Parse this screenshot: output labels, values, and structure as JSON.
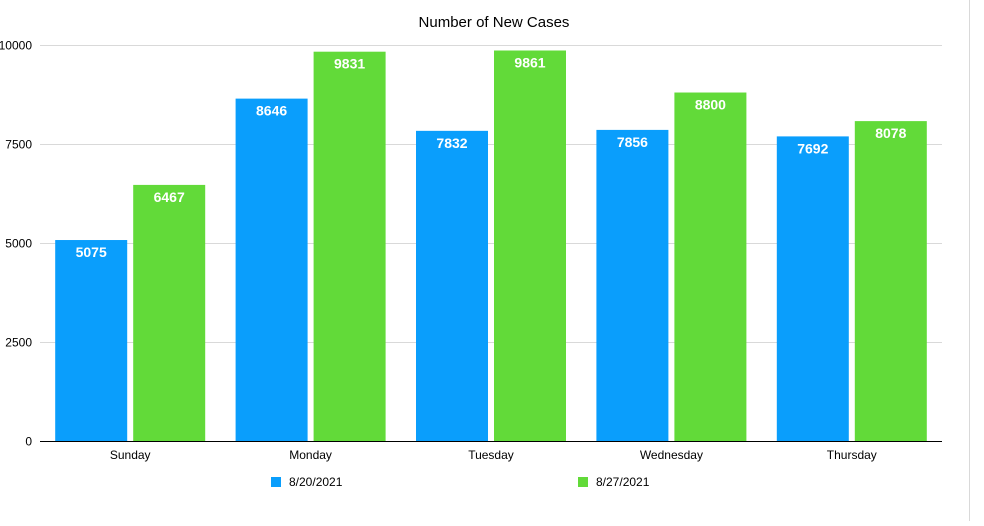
{
  "chart_data": {
    "type": "bar",
    "title": "Number of New Cases",
    "xlabel": "",
    "ylabel": "",
    "categories": [
      "Sunday",
      "Monday",
      "Tuesday",
      "Wednesday",
      "Thursday"
    ],
    "ylim": [
      0,
      10000
    ],
    "yticks": [
      0,
      2500,
      5000,
      7500,
      10000
    ],
    "ytick_labels": [
      "0",
      "2500",
      "5000",
      "7500",
      "10000"
    ],
    "grid": true,
    "legend_position": "bottom",
    "data_labels": true,
    "series": [
      {
        "name": "8/20/2021",
        "color": "#0a9efc",
        "values": [
          5075,
          8646,
          7832,
          7856,
          7692
        ]
      },
      {
        "name": "8/27/2021",
        "color": "#62da39",
        "values": [
          6467,
          9831,
          9861,
          8800,
          8078
        ]
      }
    ]
  }
}
